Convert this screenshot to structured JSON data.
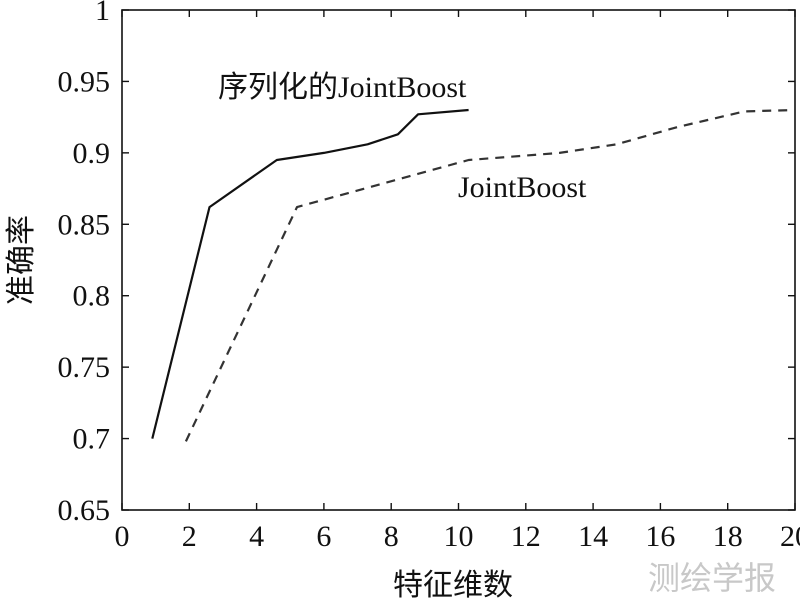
{
  "chart_data": {
    "type": "line",
    "title": "",
    "xlabel": "特征维数",
    "ylabel": "准确率",
    "xlim": [
      0,
      20
    ],
    "ylim": [
      0.65,
      1
    ],
    "xticks": [
      0,
      2,
      4,
      6,
      8,
      10,
      12,
      14,
      16,
      18,
      20
    ],
    "xtick_labels": [
      "0",
      "2",
      "4",
      "6",
      "8",
      "10",
      "12",
      "14",
      "16",
      "18",
      "20"
    ],
    "yticks": [
      0.65,
      0.7,
      0.75,
      0.8,
      0.85,
      0.9,
      0.95,
      1
    ],
    "ytick_labels": [
      "0.65",
      "0.7",
      "0.75",
      "0.8",
      "0.85",
      "0.9",
      "0.95",
      "1"
    ],
    "grid": false,
    "series": [
      {
        "name": "序列化的JointBoost",
        "style": "solid",
        "color": "#111111",
        "x": [
          0.9,
          2.6,
          4.6,
          6.0,
          7.3,
          8.2,
          8.8,
          10.3
        ],
        "y": [
          0.7,
          0.862,
          0.895,
          0.9,
          0.906,
          0.913,
          0.927,
          0.93
        ]
      },
      {
        "name": "JointBoost",
        "style": "dashed",
        "color": "#333333",
        "x": [
          1.9,
          5.2,
          10.3,
          13.0,
          14.7,
          16.5,
          18.5,
          20.0
        ],
        "y": [
          0.698,
          0.862,
          0.895,
          0.9,
          0.906,
          0.918,
          0.929,
          0.93
        ]
      }
    ]
  },
  "watermark": "测绘学报"
}
